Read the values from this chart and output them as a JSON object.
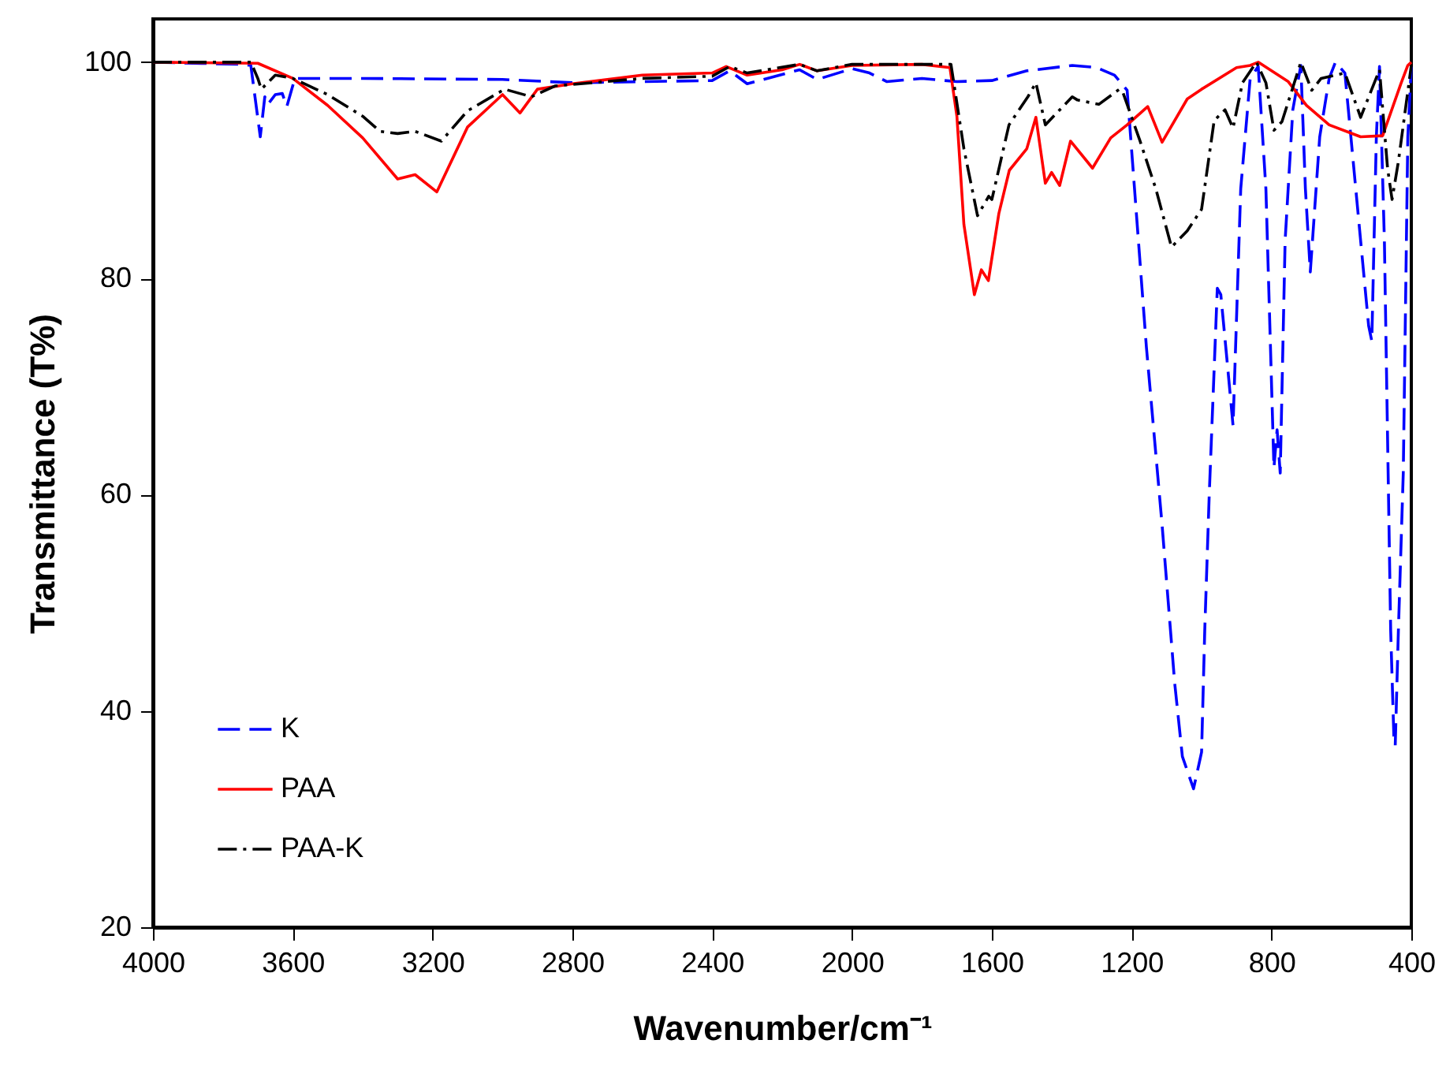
{
  "chart_data": {
    "type": "line",
    "xlabel": "Wavenumber/cm⁻¹",
    "ylabel": "Transmittance (T%)",
    "xlim": [
      4000,
      400
    ],
    "ylim": [
      20,
      104
    ],
    "xticks": [
      4000,
      3600,
      3200,
      2800,
      2400,
      2000,
      1600,
      1200,
      800,
      400
    ],
    "yticks": [
      20,
      40,
      60,
      80,
      100
    ],
    "grid": false,
    "legend": "bottom left",
    "marker": "none",
    "series": [
      {
        "name": "K",
        "color": "#0000ff",
        "line_style": "dashed",
        "x": [
          4000,
          3750,
          3720,
          3693,
          3680,
          3671,
          3650,
          3630,
          3617,
          3594,
          3400,
          3000,
          2800,
          2400,
          2350,
          2300,
          2150,
          2100,
          2000,
          1950,
          1900,
          1800,
          1700,
          1600,
          1500,
          1370,
          1300,
          1249,
          1213,
          1158,
          1113,
          1077,
          1055,
          1023,
          1000,
          991,
          978,
          955,
          945,
          928,
          910,
          888,
          861,
          838,
          816,
          793,
          784,
          775,
          761,
          739,
          716,
          703,
          689,
          662,
          635,
          617,
          590,
          545,
          522,
          513,
          500,
          491,
          477,
          459,
          450,
          446,
          437,
          423,
          410,
          400
        ],
        "values": [
          100,
          99.8,
          99.7,
          93.1,
          96.8,
          96.1,
          97,
          97.1,
          95.9,
          98.5,
          98.5,
          98.4,
          98.1,
          98.3,
          99.2,
          98,
          99.3,
          98.4,
          99.4,
          99,
          98.2,
          98.5,
          98.2,
          98.3,
          99.2,
          99.7,
          99.5,
          98.8,
          97.4,
          73.7,
          57.2,
          42.6,
          35.8,
          32.8,
          36.2,
          47.4,
          60.1,
          79.1,
          78.5,
          72.7,
          66.4,
          88.3,
          98.5,
          99.6,
          88.3,
          62.5,
          66,
          62,
          83.5,
          95.6,
          99.7,
          88.3,
          80.6,
          93.1,
          98.5,
          100,
          99,
          83.5,
          75.6,
          74.2,
          93.1,
          99.6,
          83.5,
          47.4,
          37.7,
          36.8,
          47.4,
          62,
          93.1,
          99.6
        ]
      },
      {
        "name": "PAA",
        "color": "#ff0000",
        "line_style": "solid",
        "x": [
          4000,
          3700,
          3600,
          3500,
          3400,
          3300,
          3250,
          3188,
          3100,
          3000,
          2950,
          2900,
          2800,
          2600,
          2400,
          2360,
          2300,
          2200,
          2150,
          2100,
          2000,
          1800,
          1720,
          1700,
          1680,
          1650,
          1630,
          1610,
          1580,
          1550,
          1500,
          1474,
          1447,
          1429,
          1406,
          1375,
          1312,
          1260,
          1213,
          1154,
          1113,
          1041,
          1000,
          900,
          861,
          838,
          752,
          700,
          635,
          545,
          482,
          430,
          410,
          400
        ],
        "values": [
          100,
          99.9,
          98.5,
          96,
          93,
          89.2,
          89.6,
          88,
          94,
          97,
          95.3,
          97.5,
          98,
          98.8,
          99,
          99.6,
          98.8,
          99.3,
          99.8,
          99.2,
          99.7,
          99.8,
          99.5,
          95,
          85,
          78.5,
          80.8,
          79.8,
          86,
          90,
          92,
          94.9,
          88.8,
          89.8,
          88.6,
          92.7,
          90.2,
          93,
          94.2,
          95.9,
          92.6,
          96.6,
          97.5,
          99.5,
          99.7,
          100,
          98.2,
          96,
          94.2,
          93.1,
          93.2,
          98,
          99.7,
          100
        ]
      },
      {
        "name": "PAA-K",
        "color": "#000000",
        "line_style": "dashdot",
        "x": [
          4000,
          3720,
          3700,
          3690,
          3650,
          3600,
          3500,
          3400,
          3350,
          3300,
          3250,
          3175,
          3100,
          2994,
          2917,
          2850,
          2600,
          2400,
          2350,
          2300,
          2150,
          2100,
          2000,
          1717,
          1680,
          1641,
          1609,
          1600,
          1551,
          1497,
          1474,
          1447,
          1370,
          1355,
          1294,
          1235,
          1225,
          1176,
          1131,
          1086,
          1041,
          1000,
          964,
          933,
          910,
          883,
          843,
          816,
          793,
          770,
          716,
          685,
          658,
          590,
          545,
          491,
          468,
          455,
          437,
          400
        ],
        "values": [
          100,
          100,
          98.5,
          97.5,
          98.8,
          98.5,
          97,
          95,
          93.6,
          93.4,
          93.6,
          92.7,
          95.5,
          97.5,
          96.8,
          97.8,
          98.5,
          98.7,
          99.6,
          99,
          99.8,
          99.2,
          99.8,
          99.8,
          92,
          85.8,
          87.6,
          87.3,
          94.2,
          96.8,
          98.1,
          94.2,
          96.8,
          96.5,
          96.1,
          97.5,
          97.2,
          92.7,
          88.3,
          82.9,
          84.4,
          86.4,
          94.6,
          95.6,
          93.9,
          98.1,
          100,
          98.1,
          93.7,
          94.5,
          100,
          97.4,
          98.5,
          99,
          94.9,
          99.3,
          90.2,
          87.3,
          90.8,
          99.7
        ]
      }
    ]
  }
}
